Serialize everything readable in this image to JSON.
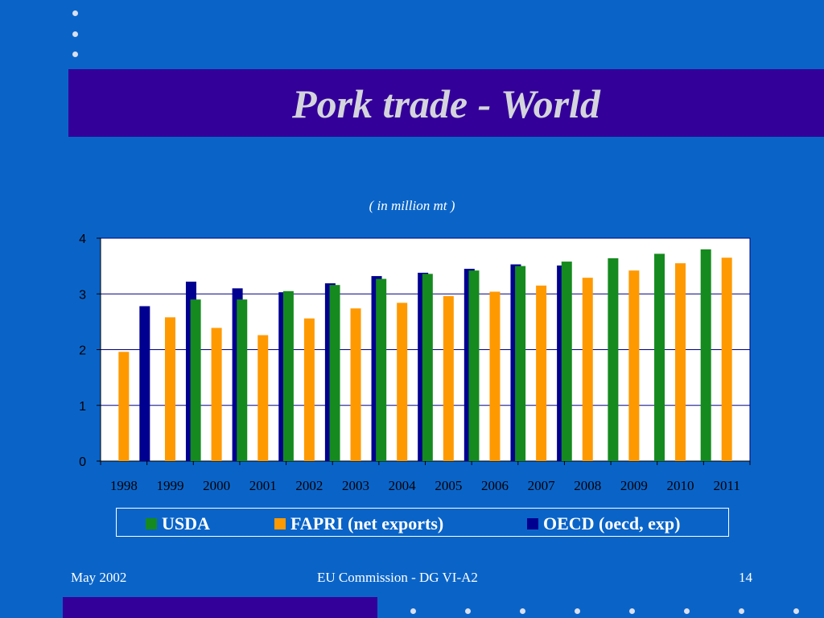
{
  "slide": {
    "title": "Pork trade - World",
    "subtitle": "( in million mt )",
    "footer_left": "May 2002",
    "footer_center": "EU Commission - DG VI-A2",
    "page_number": "14"
  },
  "colors": {
    "background": "#0a64c8",
    "title_band": "#330099",
    "usda": "#158a1e",
    "fapri": "#ff9900",
    "oecd": "#000090"
  },
  "legend": [
    {
      "label": "USDA",
      "color": "#158a1e"
    },
    {
      "label": "FAPRI (net exports)",
      "color": "#ff9900"
    },
    {
      "label": "OECD (oecd, exp)",
      "color": "#000090"
    }
  ],
  "chart_data": {
    "type": "bar",
    "title": "",
    "ylabel": "( in million mt )",
    "xlabel": "",
    "ylim": [
      0,
      4
    ],
    "yticks": [
      0,
      1,
      2,
      3,
      4
    ],
    "grid": true,
    "legend_position": "bottom",
    "categories": [
      "1998",
      "1999",
      "2000",
      "2001",
      "2002",
      "2003",
      "2004",
      "2005",
      "2006",
      "2007",
      "2008",
      "2009",
      "2010",
      "2011"
    ],
    "series": [
      {
        "name": "USDA",
        "color": "#158a1e",
        "values": [
          null,
          null,
          2.9,
          2.9,
          3.05,
          3.16,
          3.27,
          3.36,
          3.42,
          3.5,
          3.58,
          3.64,
          3.72,
          3.8
        ]
      },
      {
        "name": "FAPRI (net exports)",
        "color": "#ff9900",
        "values": [
          1.96,
          2.58,
          2.39,
          2.26,
          2.56,
          2.74,
          2.84,
          2.96,
          3.04,
          3.15,
          3.29,
          3.42,
          3.55,
          3.65
        ]
      },
      {
        "name": "OECD (oecd, exp)",
        "color": "#000090",
        "values": [
          2.78,
          3.22,
          3.1,
          3.03,
          3.19,
          3.32,
          3.38,
          3.45,
          3.53,
          3.51,
          null,
          null,
          null,
          null
        ]
      }
    ]
  }
}
